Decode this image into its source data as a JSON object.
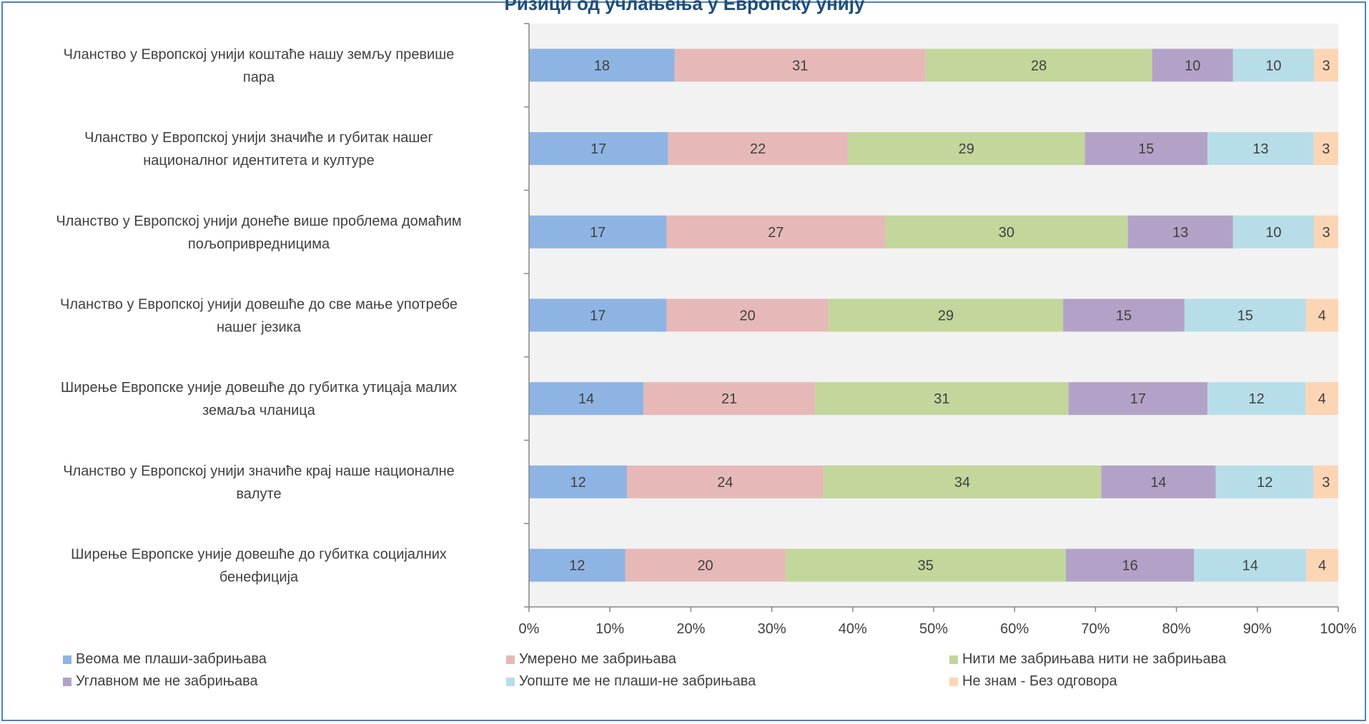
{
  "title": "Ризици од учлањења у Европску унију",
  "colors": [
    "#8eb4e3",
    "#e6b9b8",
    "#c3d69b",
    "#b3a2c7",
    "#b7dee8",
    "#fcd5b5"
  ],
  "chart_data": {
    "type": "bar",
    "orientation": "horizontal",
    "stacked": "percent",
    "title": "Ризици од учлањења у Европску унију",
    "categories": [
      "Чланство у Европској унији коштаће нашу земљу превише пара",
      "Чланство у Европској унији значиће и губитак нашег националног идентитета и културе",
      "Чланство у Европској унији донеће више проблема домаћим пољопривредницима",
      "Чланство у Европској унији довешће до све мање употребе нашег језика",
      "Ширење Европске уније довешће до губитка утицаја малих земаља чланица",
      "Чланство у Европској унији значиће крај наше националне валуте",
      "Ширење Европске уније довешће до губитка социјалних бенефиција"
    ],
    "category_lines": [
      [
        "Чланство у Европској унији коштаће нашу земљу превише",
        "пара"
      ],
      [
        "Чланство у Европској унији значиће и губитак нашег",
        "националног идентитета и културе"
      ],
      [
        "Чланство у Европској унији донеће више проблема домаћим",
        "пољопривредницима"
      ],
      [
        "Чланство у Европској унији довешће до све мање употребе",
        "нашег језика"
      ],
      [
        "Ширење Европске уније довешће до губитка утицаја малих",
        "земаља чланица"
      ],
      [
        "Чланство у Европској унији значиће крај наше националне",
        "валуте"
      ],
      [
        "Ширење Европске уније довешће до губитка социјалних",
        "бенефиција"
      ]
    ],
    "series": [
      {
        "name": "Веома ме плаши-забрињава",
        "values": [
          18,
          17,
          17,
          17,
          14,
          12,
          12
        ]
      },
      {
        "name": "Умерено ме забрињава",
        "values": [
          31,
          22,
          27,
          20,
          21,
          24,
          20
        ]
      },
      {
        "name": "Нити ме забрињава нити не забрињава",
        "values": [
          28,
          29,
          30,
          29,
          31,
          34,
          35
        ]
      },
      {
        "name": "Углавном ме не забрињава",
        "values": [
          10,
          15,
          13,
          15,
          17,
          14,
          16
        ]
      },
      {
        "name": "Уопште ме не плаши-не забрињава",
        "values": [
          10,
          13,
          10,
          15,
          12,
          12,
          14
        ]
      },
      {
        "name": "Не знам - Без одговора",
        "values": [
          3,
          3,
          3,
          4,
          4,
          3,
          4
        ]
      }
    ],
    "x_ticks": [
      "0%",
      "10%",
      "20%",
      "30%",
      "40%",
      "50%",
      "60%",
      "70%",
      "80%",
      "90%",
      "100%"
    ],
    "xlim": [
      0,
      100
    ],
    "grid": false,
    "legend_position": "bottom"
  }
}
